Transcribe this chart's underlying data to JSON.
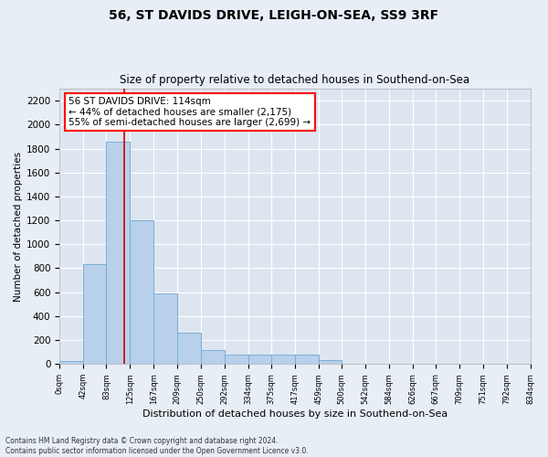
{
  "title": "56, ST DAVIDS DRIVE, LEIGH-ON-SEA, SS9 3RF",
  "subtitle": "Size of property relative to detached houses in Southend-on-Sea",
  "xlabel": "Distribution of detached houses by size in Southend-on-Sea",
  "ylabel": "Number of detached properties",
  "footer_line1": "Contains HM Land Registry data © Crown copyright and database right 2024.",
  "footer_line2": "Contains public sector information licensed under the Open Government Licence v3.0.",
  "annotation_line1": "56 ST DAVIDS DRIVE: 114sqm",
  "annotation_line2": "← 44% of detached houses are smaller (2,175)",
  "annotation_line3": "55% of semi-detached houses are larger (2,699) →",
  "bar_color": "#b8d0ea",
  "bar_edge_color": "#7aaed4",
  "vline_color": "#cc0000",
  "background_color": "#dde6f0",
  "grid_color": "#ffffff",
  "fig_bg_color": "#e8eef6",
  "bins": [
    0,
    42,
    83,
    125,
    167,
    209,
    250,
    292,
    334,
    375,
    417,
    459,
    500,
    542,
    584,
    626,
    667,
    709,
    751,
    792,
    834
  ],
  "bin_labels": [
    "0sqm",
    "42sqm",
    "83sqm",
    "125sqm",
    "167sqm",
    "209sqm",
    "250sqm",
    "292sqm",
    "334sqm",
    "375sqm",
    "417sqm",
    "459sqm",
    "500sqm",
    "542sqm",
    "584sqm",
    "626sqm",
    "667sqm",
    "709sqm",
    "751sqm",
    "792sqm",
    "834sqm"
  ],
  "counts": [
    28,
    835,
    1855,
    1200,
    590,
    265,
    120,
    75,
    75,
    75,
    75,
    35,
    4,
    4,
    4,
    4,
    4,
    4,
    4,
    4
  ],
  "vline_x": 114,
  "ylim": [
    0,
    2300
  ],
  "yticks": [
    0,
    200,
    400,
    600,
    800,
    1000,
    1200,
    1400,
    1600,
    1800,
    2000,
    2200
  ]
}
